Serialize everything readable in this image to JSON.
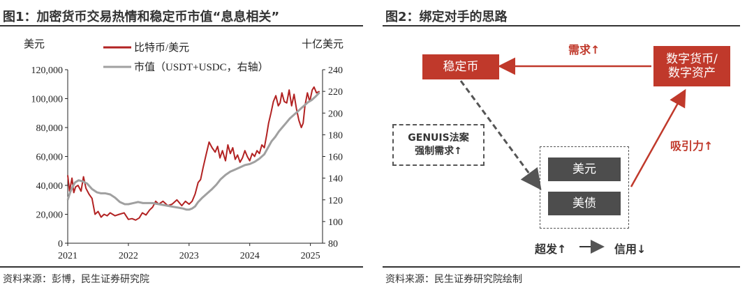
{
  "figure1": {
    "title": "图1：加密货币交易热情和稳定币市值“息息相关”",
    "source": "资料来源：彭博，民生证券研究院"
  },
  "figure2": {
    "title": "图2：绑定对手的思路",
    "source": "资料来源：民生证券研究院绘制",
    "boxes": {
      "stablecoin": "稳定币",
      "crypto_line1": "数字货币/",
      "crypto_line2": "数字资产",
      "genius_line1": "GENUIS法案",
      "genius_line2": "强制需求↑",
      "usd": "美元",
      "ust": "美债"
    },
    "labels": {
      "demand": "需求↑",
      "attraction": "吸引力↑",
      "over_issue": "超发↑",
      "credit": "信用↓"
    },
    "colors": {
      "accent": "#c0392b",
      "dark_box": "#4d4d4d",
      "gray_line": "#a0a0a0"
    }
  },
  "chart_data": {
    "type": "line",
    "left_unit": "美元",
    "right_unit": "十亿美元",
    "x_ticks": [
      "2021",
      "2022",
      "2023",
      "2024",
      "2025"
    ],
    "xlim": [
      2021.0,
      2025.2
    ],
    "ylim_left": [
      0,
      120000
    ],
    "ylim_right": [
      80,
      240
    ],
    "left_ticks": [
      "0",
      "20,000",
      "40,000",
      "60,000",
      "80,000",
      "100,000",
      "120,000"
    ],
    "right_ticks": [
      "80",
      "100",
      "120",
      "140",
      "160",
      "180",
      "200",
      "220",
      "240"
    ],
    "legend_position": "top-center",
    "series": [
      {
        "name": "比特币/美元",
        "axis": "left",
        "color": "#b22222",
        "points": [
          [
            2021.0,
            47000
          ],
          [
            2021.03,
            36000
          ],
          [
            2021.07,
            45000
          ],
          [
            2021.1,
            35000
          ],
          [
            2021.13,
            39000
          ],
          [
            2021.17,
            40000
          ],
          [
            2021.22,
            36000
          ],
          [
            2021.26,
            46000
          ],
          [
            2021.3,
            38000
          ],
          [
            2021.35,
            34000
          ],
          [
            2021.4,
            31000
          ],
          [
            2021.45,
            20000
          ],
          [
            2021.5,
            22000
          ],
          [
            2021.55,
            18000
          ],
          [
            2021.6,
            20000
          ],
          [
            2021.65,
            19000
          ],
          [
            2021.7,
            21000
          ],
          [
            2021.78,
            19000
          ],
          [
            2021.85,
            20000
          ],
          [
            2021.93,
            21000
          ],
          [
            2022.0,
            16500
          ],
          [
            2022.06,
            17000
          ],
          [
            2022.12,
            16000
          ],
          [
            2022.18,
            17500
          ],
          [
            2022.23,
            21000
          ],
          [
            2022.29,
            19500
          ],
          [
            2022.35,
            23000
          ],
          [
            2022.4,
            25000
          ],
          [
            2022.45,
            29000
          ],
          [
            2022.5,
            27000
          ],
          [
            2022.57,
            29000
          ],
          [
            2022.65,
            26000
          ],
          [
            2022.72,
            27000
          ],
          [
            2022.8,
            30000
          ],
          [
            2022.88,
            26000
          ],
          [
            2022.94,
            29000
          ],
          [
            2023.0,
            27000
          ],
          [
            2023.05,
            29000
          ],
          [
            2023.1,
            34000
          ],
          [
            2023.15,
            42000
          ],
          [
            2023.19,
            44000
          ],
          [
            2023.23,
            52000
          ],
          [
            2023.28,
            61000
          ],
          [
            2023.33,
            70000
          ],
          [
            2023.38,
            66000
          ],
          [
            2023.43,
            63000
          ],
          [
            2023.47,
            67000
          ],
          [
            2023.51,
            59000
          ],
          [
            2023.55,
            64000
          ],
          [
            2023.6,
            57000
          ],
          [
            2023.64,
            68000
          ],
          [
            2023.68,
            62000
          ],
          [
            2023.72,
            66000
          ],
          [
            2023.76,
            58000
          ],
          [
            2023.8,
            61000
          ],
          [
            2023.84,
            56000
          ],
          [
            2023.88,
            59000
          ],
          [
            2023.92,
            64000
          ],
          [
            2023.96,
            60000
          ],
          [
            2024.0,
            57000
          ],
          [
            2024.04,
            62000
          ],
          [
            2024.08,
            60000
          ],
          [
            2024.12,
            64000
          ],
          [
            2024.16,
            62000
          ],
          [
            2024.2,
            68000
          ],
          [
            2024.24,
            66000
          ],
          [
            2024.28,
            75000
          ],
          [
            2024.31,
            83000
          ],
          [
            2024.35,
            90000
          ],
          [
            2024.39,
            98000
          ],
          [
            2024.43,
            102000
          ],
          [
            2024.47,
            95000
          ],
          [
            2024.5,
            97000
          ],
          [
            2024.53,
            104000
          ],
          [
            2024.57,
            98000
          ],
          [
            2024.61,
            97000
          ],
          [
            2024.65,
            106000
          ],
          [
            2024.69,
            95000
          ],
          [
            2024.73,
            103000
          ],
          [
            2024.77,
            93000
          ],
          [
            2024.81,
            85000
          ],
          [
            2024.85,
            80000
          ],
          [
            2024.88,
            83000
          ],
          [
            2024.91,
            95000
          ],
          [
            2024.95,
            104000
          ],
          [
            2024.99,
            98000
          ],
          [
            2025.03,
            106000
          ],
          [
            2025.06,
            108000
          ],
          [
            2025.1,
            104000
          ],
          [
            2025.15,
            105000
          ]
        ]
      },
      {
        "name": "市值（USDT+USDC，右轴）",
        "axis": "right",
        "color": "#a0a0a0",
        "points": [
          [
            2021.0,
            120
          ],
          [
            2021.04,
            127
          ],
          [
            2021.08,
            132
          ],
          [
            2021.12,
            136
          ],
          [
            2021.18,
            138
          ],
          [
            2021.25,
            137
          ],
          [
            2021.32,
            135
          ],
          [
            2021.4,
            130
          ],
          [
            2021.48,
            127
          ],
          [
            2021.55,
            126
          ],
          [
            2021.62,
            126
          ],
          [
            2021.7,
            125
          ],
          [
            2021.78,
            122
          ],
          [
            2021.86,
            118
          ],
          [
            2021.94,
            116
          ],
          [
            2022.0,
            116
          ],
          [
            2022.08,
            117
          ],
          [
            2022.16,
            118
          ],
          [
            2022.24,
            117
          ],
          [
            2022.32,
            117
          ],
          [
            2022.4,
            117
          ],
          [
            2022.5,
            116
          ],
          [
            2022.6,
            115
          ],
          [
            2022.7,
            114
          ],
          [
            2022.8,
            113
          ],
          [
            2022.9,
            112
          ],
          [
            2022.96,
            111
          ],
          [
            2023.0,
            111
          ],
          [
            2023.05,
            112
          ],
          [
            2023.1,
            114
          ],
          [
            2023.15,
            118
          ],
          [
            2023.22,
            122
          ],
          [
            2023.3,
            126
          ],
          [
            2023.38,
            130
          ],
          [
            2023.45,
            134
          ],
          [
            2023.52,
            139
          ],
          [
            2023.6,
            143
          ],
          [
            2023.68,
            146
          ],
          [
            2023.76,
            148
          ],
          [
            2023.84,
            150
          ],
          [
            2023.92,
            152
          ],
          [
            2024.0,
            153
          ],
          [
            2024.08,
            155
          ],
          [
            2024.16,
            158
          ],
          [
            2024.24,
            162
          ],
          [
            2024.3,
            168
          ],
          [
            2024.36,
            174
          ],
          [
            2024.42,
            178
          ],
          [
            2024.48,
            183
          ],
          [
            2024.54,
            187
          ],
          [
            2024.6,
            191
          ],
          [
            2024.66,
            195
          ],
          [
            2024.72,
            198
          ],
          [
            2024.78,
            201
          ],
          [
            2024.84,
            204
          ],
          [
            2024.9,
            207
          ],
          [
            2024.96,
            210
          ],
          [
            2025.02,
            212
          ],
          [
            2025.08,
            215
          ],
          [
            2025.15,
            219
          ]
        ]
      }
    ]
  }
}
